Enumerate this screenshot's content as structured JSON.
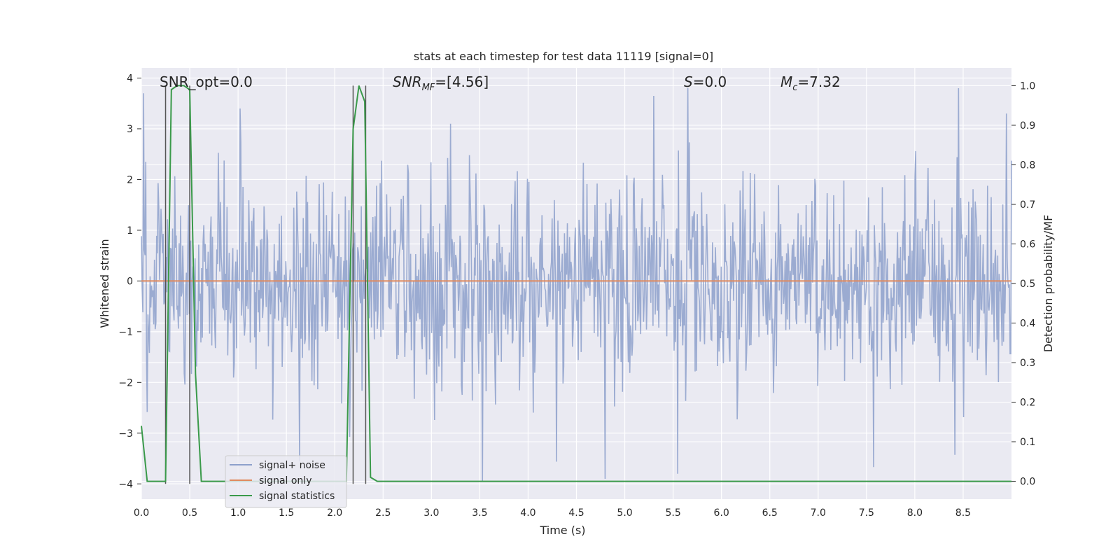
{
  "chart_data": {
    "type": "line",
    "title": "stats at each timestep for test data 11119 [signal=0]",
    "xlabel": "Time (s)",
    "ylabel": "Whitened strain",
    "ylabel_right": "Detection probability/MF",
    "xlim": [
      0.0,
      9.0
    ],
    "ylim": [
      -4.3,
      4.2
    ],
    "ylim_right": [
      -0.045,
      1.045
    ],
    "x_ticks": [
      "0.0",
      "0.5",
      "1.0",
      "1.5",
      "2.0",
      "2.5",
      "3.0",
      "3.5",
      "4.0",
      "4.5",
      "5.0",
      "5.5",
      "6.0",
      "6.5",
      "7.0",
      "7.5",
      "8.0",
      "8.5"
    ],
    "y_ticks": [
      "−4",
      "−3",
      "−2",
      "−1",
      "0",
      "1",
      "2",
      "3",
      "4"
    ],
    "y_ticks_right": [
      "0.0",
      "0.1",
      "0.2",
      "0.3",
      "0.4",
      "0.5",
      "0.6",
      "0.7",
      "0.8",
      "0.9",
      "1.0"
    ],
    "grid": true,
    "legend_position": "lower-left",
    "annotations": {
      "snr_opt": "SNR_opt=0.0",
      "snr_mf_main": "SNR",
      "snr_mf_sub": "MF",
      "snr_mf_value": "=[4.56]",
      "s_main": "S",
      "s_value": "=0.0",
      "mc_main": "M",
      "mc_sub": "c",
      "mc_value": "=7.32"
    },
    "series": [
      {
        "name": "signal+ noise",
        "color": "#8da0cb",
        "axis": "left",
        "description_values": "noise with amplitude mostly within [-2.5, 2.5], occasional peaks up to ~3.9 and down to ~-3.9",
        "n_points": 1200,
        "peak_samples": [
          {
            "x": 0.02,
            "y": 3.7
          },
          {
            "x": 1.02,
            "y": 3.4
          },
          {
            "x": 3.2,
            "y": 3.1
          },
          {
            "x": 4.8,
            "y": -3.9
          },
          {
            "x": 5.55,
            "y": -3.8
          },
          {
            "x": 5.65,
            "y": 3.8
          },
          {
            "x": 8.45,
            "y": 3.8
          },
          {
            "x": 8.95,
            "y": 3.3
          }
        ]
      },
      {
        "name": "signal only",
        "color": "#e08a5e",
        "axis": "left",
        "x": [
          0.0,
          9.0
        ],
        "y": [
          0.0,
          0.0
        ]
      },
      {
        "name": "signal statistics",
        "color": "#3a9a4a",
        "axis": "right",
        "x": [
          0.0,
          0.06,
          0.12,
          0.19,
          0.25,
          0.31,
          0.37,
          0.44,
          0.5,
          0.56,
          0.62,
          0.69,
          2.06,
          2.12,
          2.19,
          2.25,
          2.31,
          2.37,
          2.44,
          9.0
        ],
        "y": [
          0.14,
          0.0,
          0.0,
          0.0,
          0.0,
          0.99,
          1.0,
          1.0,
          0.99,
          0.27,
          0.0,
          0.0,
          0.0,
          0.0,
          0.89,
          1.0,
          0.96,
          0.01,
          0.0,
          0.0
        ]
      }
    ],
    "vertical_markers": [
      {
        "x": 0.25,
        "y_top": 3.85,
        "y_bottom": -4.0
      },
      {
        "x": 0.5,
        "y_top": 3.85,
        "y_bottom": -4.0
      },
      {
        "x": 2.19,
        "y_top": 3.85,
        "y_bottom": -4.0
      },
      {
        "x": 2.32,
        "y_top": 3.85,
        "y_bottom": -4.0
      }
    ],
    "colors": {
      "background": "#eaeaf2",
      "grid": "#ffffff",
      "noise": "#8da0cb",
      "signal": "#e08a5e",
      "stats": "#3a9a4a",
      "marker": "#555555"
    }
  }
}
